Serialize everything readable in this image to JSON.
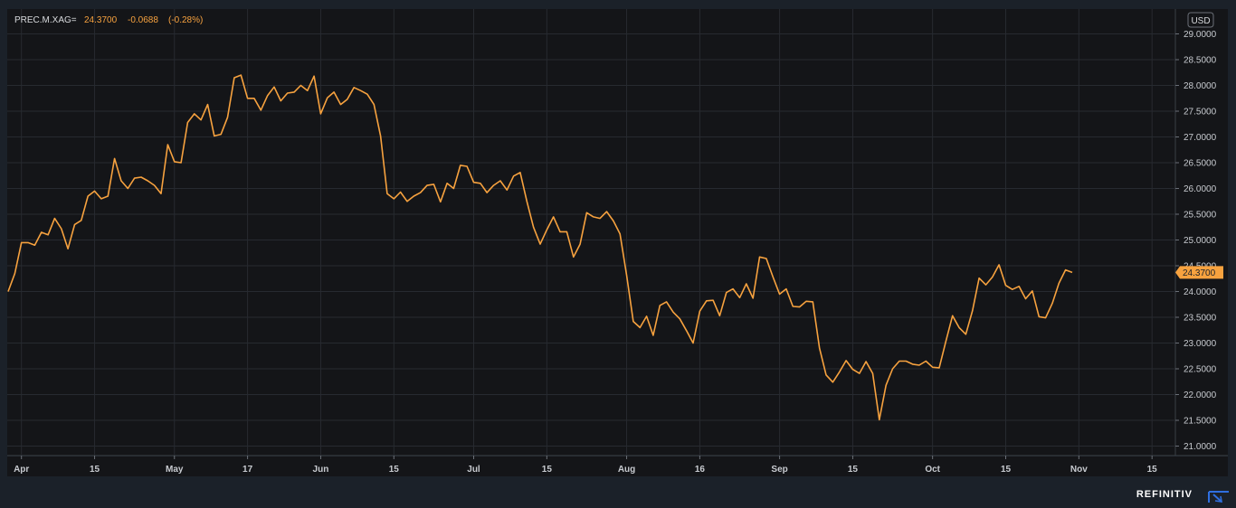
{
  "header": {
    "instrument": "PREC.M.XAG=",
    "last": "24.3700",
    "change": "-0.0688",
    "change_pct": "(-0.28%)"
  },
  "currency": "USD",
  "brand": "REFINITIV",
  "colors": {
    "line": "#f7a23f",
    "background": "#1b2129",
    "plot_background": "#141518",
    "grid": "#272a30",
    "axis_text": "#c8cbd0",
    "label_box": "#f7a23f"
  },
  "chart_data": {
    "type": "line",
    "title": "PREC.M.XAG=",
    "ylabel": "USD",
    "ylim": [
      20.8,
      29.4
    ],
    "yticks": [
      "29.0000",
      "28.5000",
      "28.0000",
      "27.5000",
      "27.0000",
      "26.5000",
      "26.0000",
      "25.5000",
      "25.0000",
      "24.5000",
      "24.0000",
      "23.5000",
      "23.0000",
      "22.5000",
      "22.0000",
      "21.5000",
      "21.0000"
    ],
    "xticks": [
      {
        "label": "Apr",
        "index": 2
      },
      {
        "label": "15",
        "index": 13
      },
      {
        "label": "May",
        "index": 25
      },
      {
        "label": "17",
        "index": 36
      },
      {
        "label": "Jun",
        "index": 47
      },
      {
        "label": "15",
        "index": 58
      },
      {
        "label": "Jul",
        "index": 70
      },
      {
        "label": "15",
        "index": 81
      },
      {
        "label": "Aug",
        "index": 93
      },
      {
        "label": "16",
        "index": 104
      },
      {
        "label": "Sep",
        "index": 116
      },
      {
        "label": "15",
        "index": 127
      },
      {
        "label": "Oct",
        "index": 139
      },
      {
        "label": "15",
        "index": 150
      },
      {
        "label": "Nov",
        "index": 161
      },
      {
        "label": "15",
        "index": 172
      }
    ],
    "x_count": 173,
    "series": [
      {
        "values": [
          24.0,
          24.35,
          24.95,
          24.95,
          24.9,
          25.15,
          25.1,
          25.42,
          25.22,
          24.83,
          25.3,
          25.38,
          25.85,
          25.95,
          25.8,
          25.85,
          26.58,
          26.15,
          26.0,
          26.2,
          26.22,
          26.15,
          26.06,
          25.9,
          26.85,
          26.52,
          26.5,
          27.28,
          27.45,
          27.33,
          27.63,
          27.02,
          27.05,
          27.38,
          28.15,
          28.2,
          27.75,
          27.75,
          27.52,
          27.8,
          27.97,
          27.7,
          27.85,
          27.87,
          28.0,
          27.9,
          28.18,
          27.45,
          27.76,
          27.87,
          27.63,
          27.73,
          27.96,
          27.9,
          27.83,
          27.63,
          27.02,
          25.9,
          25.8,
          25.93,
          25.75,
          25.85,
          25.92,
          26.06,
          26.08,
          25.74,
          26.1,
          26.0,
          26.45,
          26.43,
          26.12,
          26.1,
          25.92,
          26.06,
          26.15,
          25.97,
          26.24,
          26.31,
          25.75,
          25.25,
          24.92,
          25.2,
          25.45,
          25.16,
          25.16,
          24.67,
          24.92,
          25.53,
          25.45,
          25.42,
          25.55,
          25.37,
          25.12,
          24.32,
          23.42,
          23.3,
          23.52,
          23.15,
          23.73,
          23.8,
          23.6,
          23.47,
          23.24,
          23.0,
          23.62,
          23.82,
          23.83,
          23.53,
          23.98,
          24.05,
          23.88,
          24.15,
          23.87,
          24.67,
          24.64,
          24.28,
          23.95,
          24.05,
          23.71,
          23.7,
          23.81,
          23.8,
          22.9,
          22.38,
          22.24,
          22.44,
          22.66,
          22.49,
          22.41,
          22.64,
          22.41,
          21.51,
          22.18,
          22.5,
          22.65,
          22.65,
          22.59,
          22.57,
          22.65,
          22.53,
          22.52,
          23.03,
          23.53,
          23.3,
          23.17,
          23.63,
          24.26,
          24.13,
          24.28,
          24.52,
          24.12,
          24.04,
          24.1,
          23.86,
          24.01,
          23.51,
          23.49,
          23.77,
          24.16,
          24.42,
          24.37
        ]
      }
    ]
  }
}
